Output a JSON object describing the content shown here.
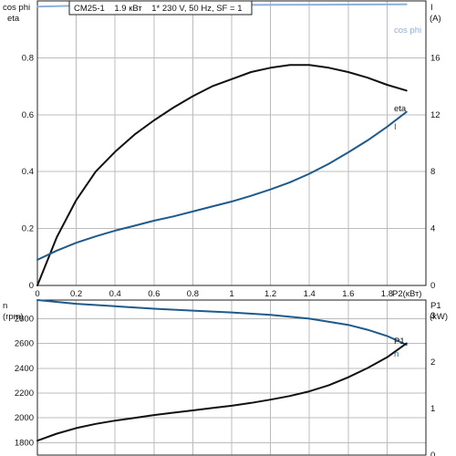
{
  "header": {
    "title": "CM25-1    1.9 кВт    1* 230 V, 50 Hz, SF = 1"
  },
  "colors": {
    "black": "#111111",
    "blue": "#1f5a8c",
    "light_blue": "#8fb0d8",
    "grid": "#bcbcbc",
    "frame": "#222222"
  },
  "chart_data": [
    {
      "type": "line",
      "x_ticks": [
        "0",
        "0.2",
        "0.4",
        "0.6",
        "0.8",
        "1",
        "1.2",
        "1.4",
        "1.6",
        "1.8"
      ],
      "xlabel": "P2(кВт)",
      "xlim": [
        0,
        2
      ],
      "left_axis": {
        "label_line1": "cos phi",
        "label_line2": "eta",
        "ticks": [
          "0",
          "0.2",
          "0.4",
          "0.6",
          "0.8"
        ],
        "ylim": [
          0,
          1
        ]
      },
      "right_axis": {
        "label_line1": "I",
        "label_line2": "(A)",
        "ticks": [
          "0",
          "4",
          "8",
          "12",
          "16"
        ],
        "ylim": [
          0,
          20
        ]
      },
      "grid": true,
      "series": [
        {
          "name": "cos phi",
          "axis": "left",
          "color": "#8fb0d8",
          "x": [
            0,
            0.2,
            0.5,
            1.0,
            1.5,
            1.9
          ],
          "y": [
            0.98,
            0.983,
            0.985,
            0.986,
            0.987,
            0.988
          ]
        },
        {
          "name": "eta",
          "axis": "left",
          "color": "#111111",
          "x": [
            0,
            0.1,
            0.2,
            0.3,
            0.4,
            0.5,
            0.6,
            0.7,
            0.8,
            0.9,
            1.0,
            1.1,
            1.2,
            1.3,
            1.4,
            1.5,
            1.6,
            1.7,
            1.8,
            1.9
          ],
          "y": [
            0.0,
            0.17,
            0.3,
            0.4,
            0.47,
            0.53,
            0.58,
            0.625,
            0.665,
            0.7,
            0.725,
            0.75,
            0.765,
            0.775,
            0.775,
            0.765,
            0.75,
            0.73,
            0.705,
            0.685
          ]
        },
        {
          "name": "I",
          "axis": "right",
          "color": "#1f5a8c",
          "x": [
            0,
            0.1,
            0.2,
            0.3,
            0.4,
            0.5,
            0.6,
            0.7,
            0.8,
            0.9,
            1.0,
            1.1,
            1.2,
            1.3,
            1.4,
            1.5,
            1.6,
            1.7,
            1.8,
            1.9
          ],
          "y": [
            1.8,
            2.45,
            3.0,
            3.45,
            3.85,
            4.2,
            4.55,
            4.85,
            5.2,
            5.55,
            5.9,
            6.3,
            6.75,
            7.25,
            7.85,
            8.55,
            9.35,
            10.2,
            11.15,
            12.2
          ]
        }
      ]
    },
    {
      "type": "line",
      "xlim": [
        0,
        2
      ],
      "left_axis": {
        "label_line1": "n",
        "label_line2": "(rpm)",
        "ticks": [
          "1800",
          "2000",
          "2200",
          "2400",
          "2600",
          "2800"
        ],
        "ylim": [
          1700,
          2950
        ]
      },
      "right_axis": {
        "label_line1": "P1",
        "label_line2": "(kW)",
        "ticks": [
          "0",
          "1",
          "2",
          "3"
        ],
        "ylim": [
          0,
          3.33
        ]
      },
      "grid": true,
      "series": [
        {
          "name": "n",
          "axis": "left",
          "color": "#1f5a8c",
          "x": [
            0,
            0.2,
            0.4,
            0.6,
            0.8,
            1.0,
            1.2,
            1.4,
            1.6,
            1.7,
            1.8,
            1.9
          ],
          "y": [
            2950,
            2920,
            2900,
            2880,
            2865,
            2850,
            2830,
            2800,
            2750,
            2710,
            2660,
            2590
          ]
        },
        {
          "name": "P1",
          "axis": "right",
          "color": "#111111",
          "x": [
            0,
            0.1,
            0.2,
            0.3,
            0.4,
            0.5,
            0.6,
            0.7,
            0.8,
            0.9,
            1.0,
            1.1,
            1.2,
            1.3,
            1.4,
            1.5,
            1.6,
            1.7,
            1.8,
            1.9
          ],
          "y": [
            0.31,
            0.46,
            0.58,
            0.67,
            0.74,
            0.8,
            0.86,
            0.91,
            0.96,
            1.01,
            1.06,
            1.12,
            1.19,
            1.27,
            1.37,
            1.5,
            1.67,
            1.87,
            2.1,
            2.4
          ]
        }
      ]
    }
  ]
}
